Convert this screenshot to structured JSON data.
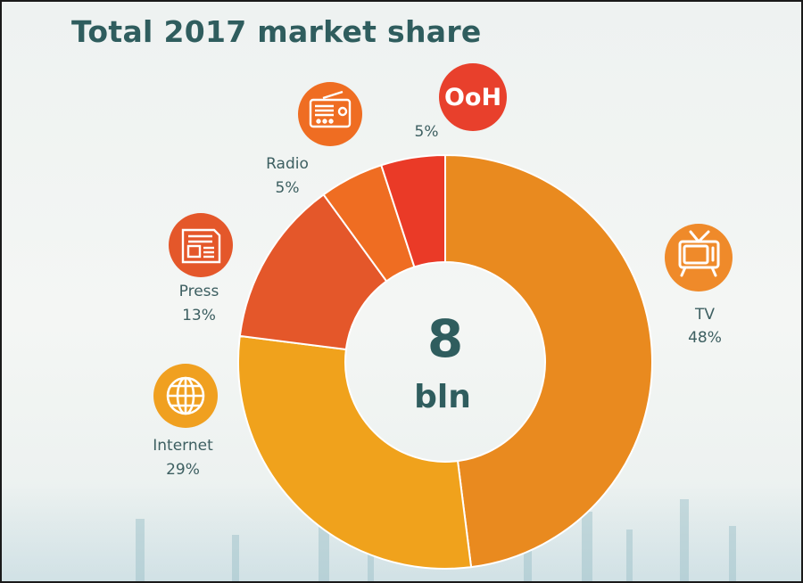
{
  "chart_data": {
    "type": "pie",
    "title": "Total 2017 market share",
    "center_value": "8",
    "center_unit": "bln",
    "categories": [
      "TV",
      "Internet",
      "Press",
      "Radio",
      "OoH"
    ],
    "values": [
      48,
      29,
      13,
      5,
      5
    ],
    "value_labels": [
      "48%",
      "29%",
      "13%",
      "5%",
      "5%"
    ],
    "colors": [
      "#e98a1f",
      "#f0a21c",
      "#e4572a",
      "#ef6d22",
      "#ea3a27"
    ],
    "icon_colors": [
      "#ef8a2a",
      "#f0a020",
      "#e4572a",
      "#ef6d22",
      "#e8402c"
    ],
    "icons": [
      "tv-icon",
      "globe-icon",
      "newspaper-icon",
      "radio-icon",
      "ooh-icon"
    ],
    "icon_text": {
      "ooh": "OoH"
    },
    "legend": "labels next to segments with icons",
    "grid": false
  }
}
